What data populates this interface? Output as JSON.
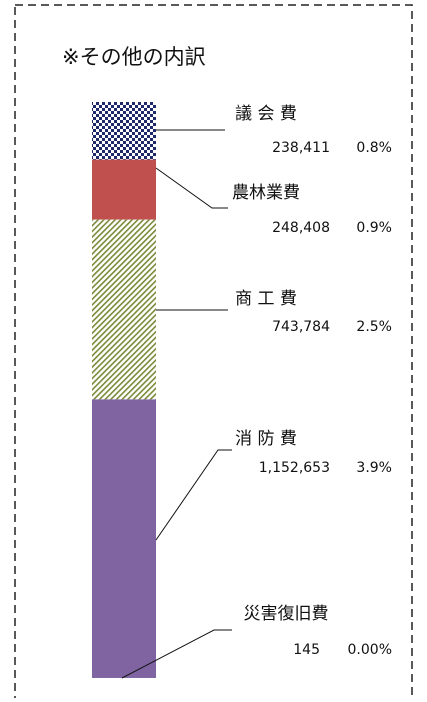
{
  "chart_data": {
    "type": "stacked-bar",
    "title": "※その他の内訳",
    "categories": [
      "議 会 費",
      "農林業費",
      "商 工 費",
      "消 防 費",
      "災害復旧費"
    ],
    "values": [
      238411,
      248408,
      743784,
      1152653,
      145
    ],
    "value_labels": [
      "238,411",
      "248,408",
      "743,784",
      "1,152,653",
      "145"
    ],
    "percents": [
      {
        "value": 0.8,
        "label": "0.8%"
      },
      {
        "value": 0.9,
        "label": "0.9%"
      },
      {
        "value": 2.5,
        "label": "2.5%"
      },
      {
        "value": 3.9,
        "label": "3.9%"
      },
      {
        "value": 0.0,
        "label": "0.00%"
      }
    ],
    "colors": [
      "url(#check)",
      "#c0504d",
      "url(#hatch)",
      "#8064a2",
      "#4bacc6"
    ]
  }
}
